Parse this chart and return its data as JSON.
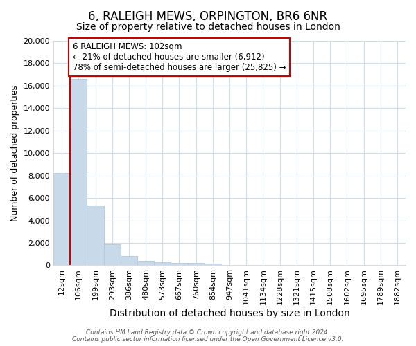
{
  "title": "6, RALEIGH MEWS, ORPINGTON, BR6 6NR",
  "subtitle": "Size of property relative to detached houses in London",
  "xlabel": "Distribution of detached houses by size in London",
  "ylabel": "Number of detached properties",
  "categories": [
    "12sqm",
    "106sqm",
    "199sqm",
    "293sqm",
    "386sqm",
    "480sqm",
    "573sqm",
    "667sqm",
    "760sqm",
    "854sqm",
    "947sqm",
    "1041sqm",
    "1134sqm",
    "1228sqm",
    "1321sqm",
    "1415sqm",
    "1508sqm",
    "1602sqm",
    "1695sqm",
    "1789sqm",
    "1882sqm"
  ],
  "values": [
    8200,
    16600,
    5300,
    1850,
    800,
    380,
    280,
    230,
    200,
    160,
    0,
    0,
    0,
    0,
    0,
    0,
    0,
    0,
    0,
    0,
    0
  ],
  "bar_color": "#c8daea",
  "bar_edge_color": "#b0c8de",
  "vline_x": 0.5,
  "vline_color": "#cc0000",
  "annotation_box_text": "6 RALEIGH MEWS: 102sqm\n← 21% of detached houses are smaller (6,912)\n78% of semi-detached houses are larger (25,825) →",
  "annotation_box_color": "#cc0000",
  "annotation_box_facecolor": "white",
  "ylim": [
    0,
    20000
  ],
  "yticks": [
    0,
    2000,
    4000,
    6000,
    8000,
    10000,
    12000,
    14000,
    16000,
    18000,
    20000
  ],
  "footer_line1": "Contains HM Land Registry data © Crown copyright and database right 2024.",
  "footer_line2": "Contains public sector information licensed under the Open Government Licence v3.0.",
  "background_color": "#ffffff",
  "grid_color": "#d0dce8",
  "title_fontsize": 12,
  "subtitle_fontsize": 10,
  "xlabel_fontsize": 10,
  "ylabel_fontsize": 9,
  "tick_fontsize": 8,
  "footer_fontsize": 6.5,
  "annotation_fontsize": 8.5
}
